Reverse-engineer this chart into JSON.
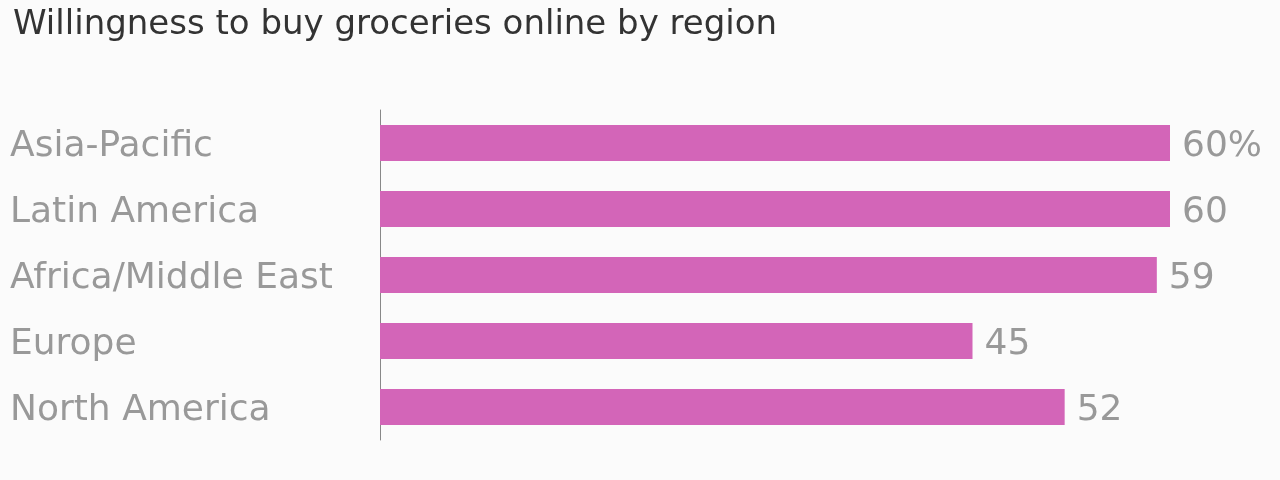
{
  "chart_data": {
    "type": "bar",
    "orientation": "horizontal",
    "title": "Willingness to buy groceries online by region",
    "categories": [
      "Asia-Pacific",
      "Latin America",
      "Africa/Middle East",
      "Europe",
      "North America"
    ],
    "values": [
      60,
      60,
      59,
      45,
      52
    ],
    "value_labels": [
      "60%",
      "60",
      "59",
      "45",
      "52"
    ],
    "color": "#d365b8"
  }
}
